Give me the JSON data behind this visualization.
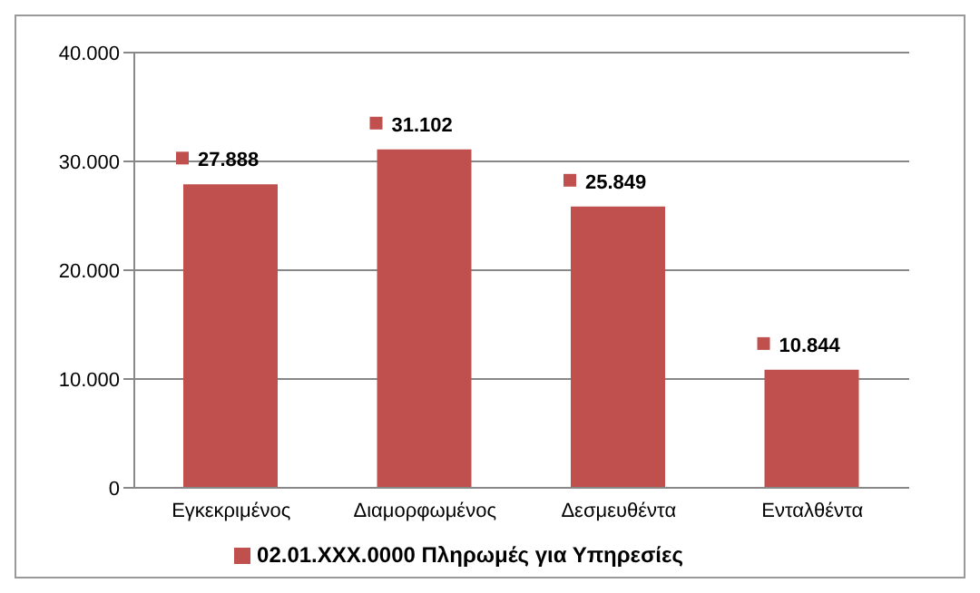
{
  "chart_data": {
    "type": "bar",
    "categories": [
      "Εγκεκριμένος",
      "Διαμορφωμένος",
      "Δεσμευθέντα",
      "Ενταλθέντα"
    ],
    "series": [
      {
        "name": "02.01.XXX.0000 Πληρωμές για Υπηρεσίες",
        "color": "#c0504d",
        "values": [
          27888,
          31102,
          25849,
          10844
        ],
        "value_labels": [
          "27.888",
          "31.102",
          "25.849",
          "10.844"
        ]
      }
    ],
    "ylim": [
      0,
      40000
    ],
    "yticks": [
      {
        "value": 0,
        "label": "0"
      },
      {
        "value": 10000,
        "label": "10.000"
      },
      {
        "value": 20000,
        "label": "20.000"
      },
      {
        "value": 30000,
        "label": "30.000"
      },
      {
        "value": 40000,
        "label": "40.000"
      }
    ],
    "grid": "y",
    "legend": "bottom"
  }
}
